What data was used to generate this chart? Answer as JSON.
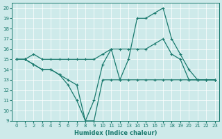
{
  "xlabel": "Humidex (Indice chaleur)",
  "xlim": [
    -0.5,
    23.5
  ],
  "ylim": [
    9,
    20.5
  ],
  "yticks": [
    9,
    10,
    11,
    12,
    13,
    14,
    15,
    16,
    17,
    18,
    19,
    20
  ],
  "xticks": [
    0,
    1,
    2,
    3,
    4,
    5,
    6,
    7,
    8,
    9,
    10,
    11,
    12,
    13,
    14,
    15,
    16,
    17,
    18,
    19,
    20,
    21,
    22,
    23
  ],
  "bg_color": "#ceeaea",
  "line_color": "#1a7a6e",
  "line_solid_lower": {
    "x": [
      0,
      1,
      2,
      3,
      4,
      5,
      6,
      7,
      8,
      9,
      10,
      11,
      12,
      13,
      14,
      15,
      16,
      17,
      18,
      19,
      20,
      21,
      22,
      23
    ],
    "y": [
      15,
      15,
      14.5,
      14,
      14,
      13.5,
      13,
      12.5,
      9,
      9,
      13,
      13,
      13,
      13,
      13,
      13,
      13,
      13,
      13,
      13,
      13,
      13,
      13,
      13
    ]
  },
  "line_solid_upper": {
    "x": [
      0,
      1,
      2,
      3,
      4,
      5,
      6,
      7,
      8,
      9,
      10,
      11,
      12,
      13,
      14,
      15,
      16,
      17,
      18,
      19,
      20,
      21,
      22,
      23
    ],
    "y": [
      15,
      15,
      15.5,
      15,
      15,
      15,
      15,
      15,
      15,
      15,
      15.5,
      16,
      16,
      16,
      16,
      16,
      16.5,
      17,
      15.5,
      15,
      13,
      13,
      13,
      13
    ]
  },
  "line_peak": {
    "x": [
      0,
      1,
      2,
      3,
      4,
      5,
      6,
      7,
      8,
      9,
      10,
      11,
      12,
      13,
      14,
      15,
      16,
      17,
      18,
      19,
      20,
      21,
      22,
      23
    ],
    "y": [
      15,
      15,
      14.5,
      14,
      14,
      13.5,
      12.5,
      11,
      9,
      11,
      14.5,
      16,
      13,
      15,
      19,
      19,
      19.5,
      20,
      17,
      15.5,
      14,
      13,
      13,
      13
    ]
  }
}
